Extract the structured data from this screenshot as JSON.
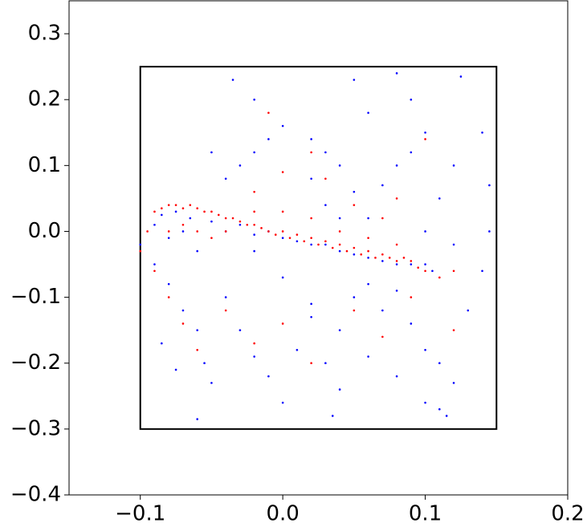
{
  "chart_data": {
    "type": "scatter",
    "xlim": [
      -0.15,
      0.2
    ],
    "ylim": [
      -0.4,
      0.35
    ],
    "xticks": [
      {
        "value": -0.1,
        "label": "−0.1"
      },
      {
        "value": 0,
        "label": "0.0"
      },
      0.1,
      0.2
    ],
    "yticks": [
      {
        "value": -0.4,
        "label": "−0.4"
      },
      {
        "value": -0.3,
        "label": "−0.3"
      },
      {
        "value": -0.2,
        "label": "−0.2"
      },
      {
        "value": -0.1,
        "label": "−0.1"
      },
      {
        "value": 0,
        "label": "0.0"
      },
      0.1,
      0.2,
      0.3
    ],
    "rectangle": {
      "x": [
        -0.1,
        0.15
      ],
      "y": [
        -0.3,
        0.25
      ],
      "color": "#000000"
    },
    "series": [
      {
        "color": "#0000ff",
        "x": [
          -0.09,
          -0.085,
          -0.08,
          -0.075,
          -0.07,
          -0.065,
          -0.06,
          -0.05,
          -0.04,
          -0.03,
          -0.02,
          -0.01,
          0.0,
          0.01,
          0.02,
          0.03,
          0.04,
          0.05,
          0.06,
          0.07,
          0.08,
          0.09,
          0.1,
          0.105,
          -0.09,
          -0.08,
          -0.07,
          -0.06,
          -0.055,
          -0.05,
          -0.04,
          -0.03,
          -0.02,
          -0.01,
          0.0,
          0.01,
          0.02,
          -0.1,
          -0.085,
          -0.075,
          -0.06,
          -0.02,
          0.0,
          0.02,
          0.04,
          0.06,
          0.08,
          0.1,
          0.11,
          -0.04,
          -0.03,
          -0.02,
          -0.01,
          -0.05,
          -0.035,
          -0.02,
          0.0,
          0.02,
          0.03,
          0.04,
          0.05,
          0.02,
          0.03,
          0.04,
          0.06,
          0.07,
          0.08,
          0.09,
          0.1,
          0.09,
          0.08,
          0.05,
          0.06,
          0.125,
          0.14,
          0.145,
          0.145,
          0.14,
          0.13,
          0.12,
          0.11,
          0.1,
          0.12,
          0.05,
          0.07,
          0.09,
          0.1,
          0.11,
          0.12,
          0.03,
          0.04,
          0.035,
          0.115,
          0.08,
          0.06
        ],
        "y": [
          0.01,
          0.025,
          -0.01,
          0.03,
          0.0,
          0.02,
          -0.03,
          0.015,
          0.0,
          0.01,
          -0.005,
          0.0,
          -0.01,
          -0.015,
          -0.02,
          -0.02,
          -0.03,
          -0.035,
          -0.04,
          -0.045,
          -0.05,
          -0.05,
          -0.05,
          -0.06,
          -0.05,
          -0.08,
          -0.12,
          -0.15,
          -0.2,
          -0.23,
          -0.1,
          -0.15,
          -0.19,
          -0.22,
          -0.26,
          -0.18,
          -0.13,
          -0.02,
          -0.17,
          -0.21,
          -0.285,
          -0.03,
          -0.07,
          -0.11,
          -0.15,
          -0.19,
          -0.22,
          -0.26,
          -0.27,
          0.08,
          0.1,
          0.12,
          0.14,
          0.12,
          0.23,
          0.2,
          0.16,
          0.14,
          0.12,
          0.1,
          0.06,
          0.08,
          0.04,
          0.02,
          0.02,
          0.07,
          0.1,
          0.12,
          0.15,
          0.2,
          0.24,
          0.23,
          0.18,
          0.235,
          0.15,
          0.07,
          0.0,
          -0.06,
          -0.12,
          0.1,
          0.05,
          0.0,
          -0.02,
          -0.1,
          -0.12,
          -0.14,
          -0.18,
          -0.2,
          -0.23,
          -0.2,
          -0.24,
          -0.28,
          -0.28,
          -0.09,
          -0.08
        ]
      },
      {
        "color": "#ff0000",
        "x": [
          -0.1,
          -0.095,
          -0.09,
          -0.085,
          -0.08,
          -0.075,
          -0.07,
          -0.065,
          -0.06,
          -0.055,
          -0.05,
          -0.045,
          -0.04,
          -0.035,
          -0.03,
          -0.025,
          -0.02,
          -0.015,
          -0.01,
          -0.005,
          0.0,
          0.005,
          0.01,
          0.015,
          0.02,
          0.025,
          0.03,
          0.035,
          0.04,
          0.045,
          0.05,
          0.055,
          0.06,
          0.065,
          0.07,
          0.075,
          0.08,
          0.085,
          0.09,
          0.095,
          0.1,
          0.11,
          0.12,
          -0.08,
          -0.07,
          -0.06,
          -0.05,
          -0.04,
          -0.02,
          0.0,
          0.02,
          0.04,
          0.06,
          0.08,
          -0.09,
          -0.08,
          -0.07,
          -0.06,
          -0.04,
          -0.02,
          0.0,
          0.02,
          0.05,
          0.07,
          0.09,
          0.12,
          -0.02,
          0.0,
          0.02,
          0.03,
          0.05,
          0.07,
          0.08,
          -0.01,
          0.1
        ],
        "y": [
          -0.03,
          0.0,
          0.03,
          0.035,
          0.04,
          0.04,
          0.035,
          0.04,
          0.035,
          0.03,
          0.03,
          0.025,
          0.02,
          0.02,
          0.015,
          0.01,
          0.01,
          0.005,
          0.0,
          -0.005,
          0.0,
          -0.01,
          -0.005,
          -0.015,
          -0.01,
          -0.02,
          -0.015,
          -0.025,
          -0.02,
          -0.03,
          -0.025,
          -0.035,
          -0.03,
          -0.04,
          -0.035,
          -0.04,
          -0.045,
          -0.04,
          -0.045,
          -0.055,
          -0.06,
          -0.07,
          -0.06,
          0.0,
          0.01,
          0.0,
          -0.01,
          0.0,
          0.03,
          0.03,
          0.02,
          0.0,
          -0.01,
          -0.02,
          -0.06,
          -0.1,
          -0.14,
          -0.18,
          -0.12,
          -0.17,
          -0.14,
          -0.2,
          -0.12,
          -0.16,
          -0.1,
          -0.15,
          0.06,
          0.09,
          0.12,
          0.08,
          0.04,
          0.02,
          0.05,
          0.18,
          0.14
        ]
      }
    ]
  }
}
